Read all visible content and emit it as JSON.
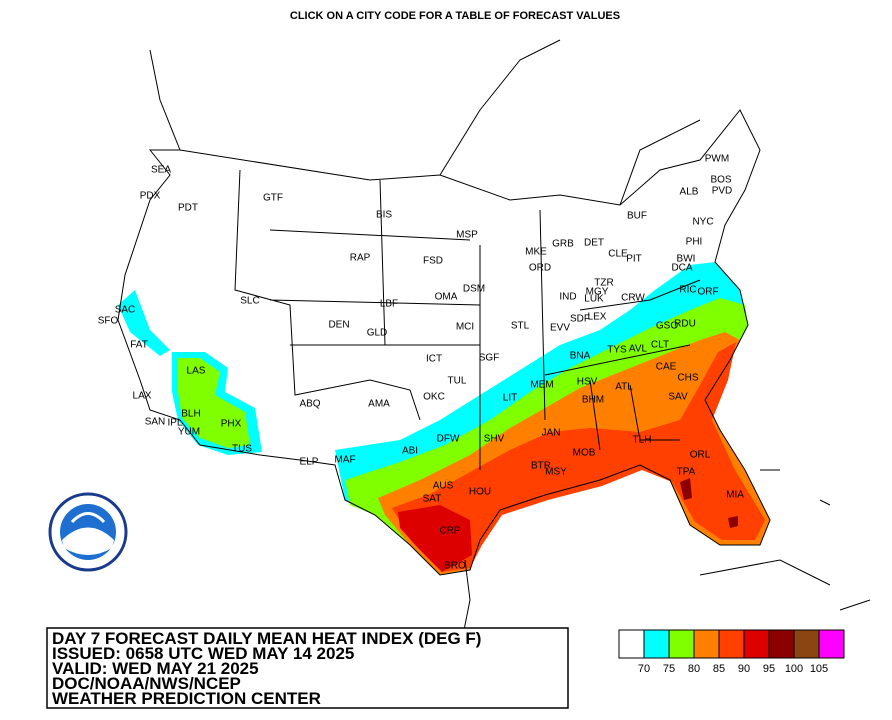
{
  "header": {
    "instruction": "CLICK ON A CITY CODE FOR A TABLE OF FORECAST VALUES"
  },
  "cities": [
    "SEA",
    "PDX",
    "PDT",
    "GTF",
    "BIS",
    "MSP",
    "RAP",
    "FSD",
    "MKE",
    "GRB",
    "DET",
    "BUF",
    "ALB",
    "PWM",
    "BOS",
    "PVD",
    "NYC",
    "PHI",
    "CLE",
    "PIT",
    "BWI",
    "DCA",
    "ORD",
    "DSM",
    "OMA",
    "SLC",
    "LBF",
    "TZR",
    "MGY",
    "LUK",
    "IND",
    "SDF",
    "LEX",
    "CRW",
    "RIC",
    "ORF",
    "SAC",
    "SFO",
    "DEN",
    "GLD",
    "MCI",
    "STL",
    "EVV",
    "GSO",
    "RDU",
    "FAT",
    "ICT",
    "SGF",
    "BNA",
    "TYS",
    "AVL",
    "CLT",
    "CAE",
    "LAS",
    "TUL",
    "MEM",
    "HSV",
    "ATL",
    "CHS",
    "LAX",
    "BLH",
    "PHX",
    "ABQ",
    "AMA",
    "OKC",
    "LIT",
    "BHM",
    "SAV",
    "SAN",
    "IPL",
    "YUM",
    "TUS",
    "ELP",
    "MAF",
    "ABI",
    "DFW",
    "SHV",
    "JAN",
    "MOB",
    "TLH",
    "BTR",
    "MSY",
    "TPA",
    "ORL",
    "MIA",
    "AUS",
    "HOU",
    "SAT",
    "CRP",
    "BRO"
  ],
  "title_block": {
    "lines": [
      "DAY 7 FORECAST DAILY MEAN HEAT INDEX (DEG F)",
      "ISSUED: 0658 UTC WED MAY 14 2025",
      "VALID: WED MAY 21 2025",
      "DOC/NOAA/NWS/NCEP",
      "WEATHER PREDICTION CENTER"
    ]
  },
  "legend": {
    "colors": [
      "#ffffff",
      "#00ffff",
      "#80ff00",
      "#ff8000",
      "#ff4000",
      "#dd0000",
      "#8b0000",
      "#8b4513",
      "#ff00ff"
    ],
    "thresholds": [
      70,
      75,
      80,
      85,
      90,
      95,
      100,
      105
    ]
  }
}
